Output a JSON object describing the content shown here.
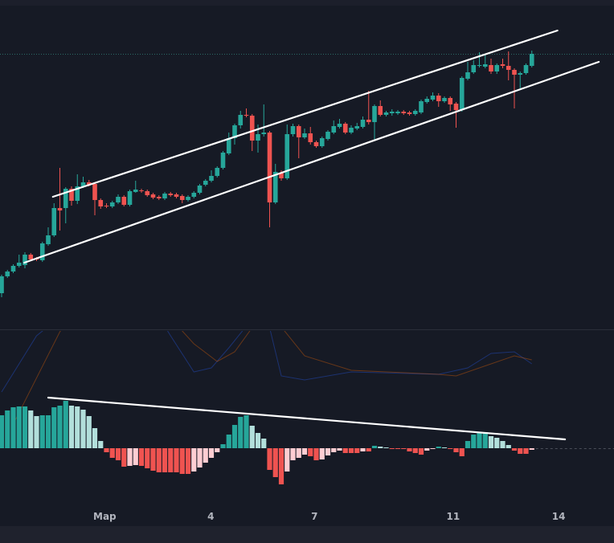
{
  "chart_data": [
    {
      "type": "candlestick",
      "title": "",
      "colors": {
        "up": "#26a69a",
        "down": "#ef5350",
        "background": "#161a25",
        "trendline": "#ffffff",
        "last_price_line": "#2a6b66"
      },
      "ohlc_fields": [
        "open",
        "close",
        "high",
        "low"
      ],
      "candles": [
        [
          35,
          56,
          58,
          30
        ],
        [
          56,
          62,
          64,
          54
        ],
        [
          62,
          69,
          71,
          60
        ],
        [
          69,
          73,
          83,
          67
        ],
        [
          70,
          83,
          86,
          66
        ],
        [
          83,
          77,
          85,
          75
        ],
        [
          78,
          77,
          80,
          75
        ],
        [
          76,
          97,
          99,
          74
        ],
        [
          96,
          107,
          117,
          94
        ],
        [
          107,
          141,
          147,
          105
        ],
        [
          141,
          138,
          191,
          113
        ],
        [
          141,
          165,
          167,
          122
        ],
        [
          165,
          150,
          168,
          144
        ],
        [
          150,
          168,
          183,
          146
        ],
        [
          168,
          173,
          180,
          166
        ],
        [
          173,
          170,
          176,
          168
        ],
        [
          171,
          151,
          173,
          132
        ],
        [
          151,
          143,
          153,
          140
        ],
        [
          144,
          143,
          147,
          141
        ],
        [
          143,
          148,
          150,
          141
        ],
        [
          148,
          155,
          158,
          146
        ],
        [
          155,
          145,
          157,
          143
        ],
        [
          145,
          162,
          164,
          143
        ],
        [
          161,
          164,
          175,
          160
        ],
        [
          163,
          162,
          165,
          160
        ],
        [
          162,
          157,
          164,
          155
        ],
        [
          158,
          154,
          160,
          152
        ],
        [
          155,
          153,
          157,
          151
        ],
        [
          153,
          159,
          161,
          151
        ],
        [
          159,
          157,
          161,
          155
        ],
        [
          158,
          155,
          160,
          153
        ],
        [
          156,
          151,
          158,
          147
        ],
        [
          151,
          155,
          157,
          149
        ],
        [
          155,
          160,
          162,
          153
        ],
        [
          160,
          169,
          171,
          158
        ],
        [
          170,
          175,
          177,
          168
        ],
        [
          175,
          181,
          188,
          173
        ],
        [
          181,
          191,
          193,
          179
        ],
        [
          191,
          210,
          212,
          189
        ],
        [
          209,
          228,
          235,
          207
        ],
        [
          228,
          244,
          246,
          220
        ],
        [
          244,
          257,
          262,
          240
        ],
        [
          257,
          256,
          265,
          254
        ],
        [
          256,
          225,
          258,
          212
        ],
        [
          225,
          233,
          245,
          210
        ],
        [
          233,
          235,
          270,
          230
        ],
        [
          235,
          148,
          237,
          117
        ],
        [
          148,
          186,
          196,
          146
        ],
        [
          185,
          178,
          188,
          175
        ],
        [
          178,
          233,
          245,
          176
        ],
        [
          233,
          243,
          246,
          230
        ],
        [
          243,
          229,
          245,
          203
        ],
        [
          229,
          234,
          240,
          227
        ],
        [
          234,
          223,
          242,
          220
        ],
        [
          223,
          218,
          225,
          216
        ],
        [
          218,
          228,
          230,
          216
        ],
        [
          227,
          236,
          238,
          225
        ],
        [
          235,
          243,
          250,
          233
        ],
        [
          242,
          246,
          252,
          240
        ],
        [
          246,
          235,
          248,
          233
        ],
        [
          235,
          241,
          244,
          233
        ],
        [
          240,
          243,
          247,
          238
        ],
        [
          242,
          251,
          255,
          240
        ],
        [
          251,
          248,
          287,
          245
        ],
        [
          248,
          268,
          270,
          226
        ],
        [
          268,
          257,
          275,
          255
        ],
        [
          257,
          260,
          262,
          255
        ],
        [
          259,
          261,
          264,
          256
        ],
        [
          259,
          261,
          263,
          257
        ],
        [
          261,
          259,
          263,
          257
        ],
        [
          260,
          258,
          262,
          256
        ],
        [
          258,
          262,
          264,
          256
        ],
        [
          260,
          274,
          276,
          258
        ],
        [
          273,
          277,
          280,
          271
        ],
        [
          276,
          281,
          285,
          274
        ],
        [
          281,
          274,
          284,
          267
        ],
        [
          274,
          278,
          280,
          272
        ],
        [
          278,
          270,
          280,
          262
        ],
        [
          271,
          263,
          273,
          241
        ],
        [
          263,
          303,
          305,
          261
        ],
        [
          302,
          310,
          323,
          300
        ],
        [
          310,
          319,
          325,
          308
        ],
        [
          318,
          319,
          335,
          316
        ],
        [
          317,
          320,
          333,
          315
        ],
        [
          319,
          311,
          327,
          308
        ],
        [
          311,
          319,
          321,
          308
        ],
        [
          320,
          318,
          327,
          315
        ],
        [
          318,
          313,
          336,
          300
        ],
        [
          313,
          307,
          315,
          265
        ],
        [
          307,
          309,
          311,
          290
        ],
        [
          309,
          319,
          321,
          307
        ],
        [
          318,
          333,
          337,
          316
        ]
      ],
      "last_price": 333,
      "trendlines": [
        {
          "from": [
            8.8,
            155
          ],
          "to": [
            95.4,
            362
          ]
        },
        {
          "from": [
            3.9,
            73
          ],
          "to": [
            102.5,
            323
          ]
        }
      ],
      "x_ticks": [
        {
          "label": "Map",
          "at": 17.7
        },
        {
          "label": "4",
          "at": 35.9
        },
        {
          "label": "7",
          "at": 53.7
        },
        {
          "label": "11",
          "at": 77.5
        },
        {
          "label": "14",
          "at": 95.6
        }
      ]
    },
    {
      "type": "bar",
      "title": "",
      "colors": {
        "up_strong": "#26a69a",
        "up_weak": "#b2dfdb",
        "down_strong": "#ef5350",
        "down_weak": "#ffcdd2",
        "macd_line": "#2962ff",
        "signal_line": "#ff6d00"
      },
      "histogram": [
        41,
        47,
        51,
        52,
        52,
        47,
        40,
        41,
        41,
        51,
        53,
        59,
        53,
        52,
        48,
        40,
        25,
        9,
        -5,
        -12,
        -15,
        -23,
        -22,
        -21,
        -22,
        -25,
        -28,
        -30,
        -30,
        -30,
        -30,
        -32,
        -32,
        -29,
        -24,
        -18,
        -12,
        -5,
        5,
        17,
        29,
        39,
        41,
        28,
        19,
        12,
        -27,
        -36,
        -45,
        -29,
        -15,
        -12,
        -8,
        -10,
        -15,
        -14,
        -9,
        -5,
        -3,
        -6,
        -6,
        -6,
        -4,
        -4,
        3,
        2,
        1,
        -0.5,
        -0.5,
        -1,
        -4,
        -6,
        -8,
        -3,
        -1,
        2,
        1,
        -1,
        -5,
        -10,
        9,
        17,
        20,
        20,
        15,
        13,
        9,
        4,
        -3,
        -7,
        -7,
        -2
      ],
      "macd_line": [
        [
          0,
          70
        ],
        [
          6,
          140
        ],
        [
          12,
          175
        ],
        [
          26,
          175
        ],
        [
          29,
          140
        ],
        [
          33,
          95
        ],
        [
          36,
          100
        ],
        [
          39,
          125
        ],
        [
          44,
          170
        ],
        [
          46,
          150
        ],
        [
          48,
          90
        ],
        [
          52,
          85
        ],
        [
          60,
          95
        ],
        [
          75,
          92
        ],
        [
          80,
          100
        ],
        [
          84,
          118
        ],
        [
          88,
          120
        ],
        [
          91,
          105
        ]
      ],
      "signal_line": [
        [
          2,
          30
        ],
        [
          10,
          145
        ],
        [
          14,
          180
        ],
        [
          28,
          170
        ],
        [
          33,
          130
        ],
        [
          37,
          108
        ],
        [
          40,
          120
        ],
        [
          43,
          150
        ],
        [
          47,
          160
        ],
        [
          52,
          115
        ],
        [
          60,
          97
        ],
        [
          75,
          92
        ],
        [
          78,
          90
        ],
        [
          84,
          105
        ],
        [
          88,
          115
        ],
        [
          91,
          110
        ]
      ],
      "trendline": {
        "from": [
          8,
          63
        ],
        "to": [
          96.7,
          11
        ]
      }
    }
  ]
}
